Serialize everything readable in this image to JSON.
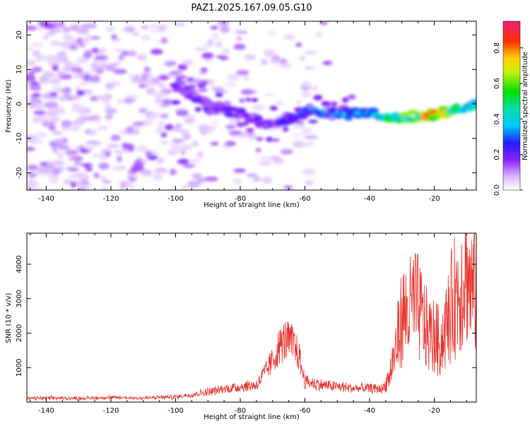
{
  "title": "PAZ1.2025.167.09.05.G10",
  "colors": {
    "snr_line": "#e8302a",
    "axis": "#000000"
  },
  "chart_data": [
    {
      "type": "heatmap",
      "xlabel": "Height of straight line (km)",
      "ylabel": "Frequency (Hz)",
      "xlim": [
        -146,
        -7
      ],
      "ylim": [
        -25,
        24
      ],
      "xticks": [
        -140,
        -120,
        -100,
        -80,
        -60,
        -40,
        -20
      ],
      "yticks": [
        -20,
        -10,
        0,
        10,
        20
      ],
      "colorbar": {
        "label": "Normalized spectral amplitude",
        "range": [
          0,
          0.95
        ],
        "ticks": [
          0.0,
          0.2,
          0.4,
          0.6,
          0.8
        ],
        "colormap": "rainbow (white-violet-blue-cyan-green-yellow-red-magenta)"
      },
      "ridge": {
        "description": "main signal ridge: frequency offset vs height",
        "x": [
          -100,
          -90,
          -80,
          -70,
          -60,
          -50,
          -40,
          -30,
          -20,
          -10,
          -7
        ],
        "y": [
          6,
          0,
          -3,
          -6,
          -2,
          -3,
          -3,
          -4,
          -3,
          -1,
          0
        ],
        "amplitude": [
          0.2,
          0.2,
          0.2,
          0.2,
          0.3,
          0.35,
          0.4,
          0.55,
          0.85,
          0.5,
          0.4
        ]
      }
    },
    {
      "type": "line",
      "xlabel": "Height of straight line (km)",
      "ylabel": "SNR (10 * v/v)",
      "xlim": [
        -146,
        -7
      ],
      "ylim": [
        0,
        4900
      ],
      "xticks": [
        -140,
        -120,
        -100,
        -80,
        -60,
        -40,
        -20
      ],
      "yticks": [
        1000,
        2000,
        3000,
        4000
      ],
      "series": [
        {
          "x": [
            -146,
            -140,
            -130,
            -120,
            -110,
            -100,
            -95,
            -90,
            -85,
            -80,
            -75,
            -72,
            -70,
            -68,
            -66,
            -64,
            -62,
            -60,
            -55,
            -50,
            -45,
            -40,
            -36,
            -34,
            -32,
            -30,
            -28,
            -26,
            -24,
            -22,
            -20,
            -18,
            -16,
            -14,
            -12,
            -10,
            -9,
            -7
          ],
          "y": [
            100,
            120,
            110,
            130,
            120,
            150,
            220,
            300,
            380,
            450,
            500,
            900,
            1200,
            1600,
            1800,
            1700,
            1400,
            600,
            500,
            450,
            400,
            400,
            380,
            700,
            1500,
            2500,
            2600,
            2900,
            2500,
            2000,
            1900,
            1700,
            2300,
            3000,
            3300,
            4000,
            3300,
            3200
          ]
        }
      ]
    }
  ]
}
